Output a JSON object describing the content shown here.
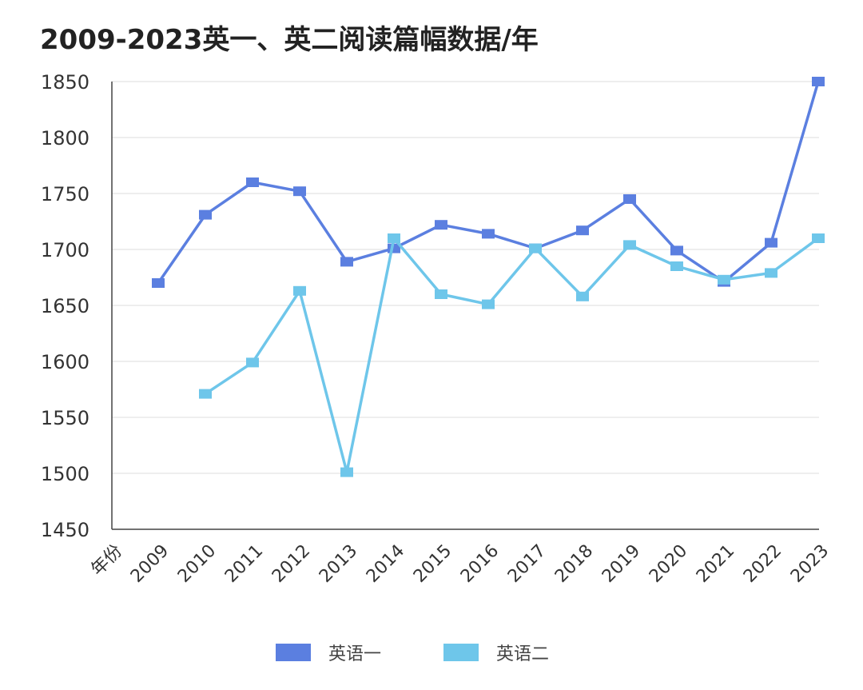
{
  "chart_data": {
    "type": "line",
    "title": "2009-2023英一、英二阅读篇幅数据/年",
    "xlabel": "年份",
    "ylabel": "",
    "categories": [
      "2009",
      "2010",
      "2011",
      "2012",
      "2013",
      "2014",
      "2015",
      "2016",
      "2017",
      "2018",
      "2019",
      "2020",
      "2021",
      "2022",
      "2023"
    ],
    "ylim": [
      1450,
      1850
    ],
    "yticks": [
      1450,
      1500,
      1550,
      1600,
      1650,
      1700,
      1750,
      1800,
      1850
    ],
    "grid": true,
    "legend_position": "bottom",
    "series": [
      {
        "name": "英语一",
        "color": "#5b7fe0",
        "values": [
          1670,
          1731,
          1760,
          1752,
          1689,
          1701,
          1722,
          1714,
          1701,
          1717,
          1745,
          1699,
          1671,
          1706,
          1850
        ]
      },
      {
        "name": "英语二",
        "color": "#6ec6ea",
        "values": [
          null,
          1571,
          1599,
          1663,
          1501,
          1710,
          1660,
          1651,
          1701,
          1658,
          1704,
          1685,
          1673,
          1679,
          1710
        ]
      }
    ]
  }
}
